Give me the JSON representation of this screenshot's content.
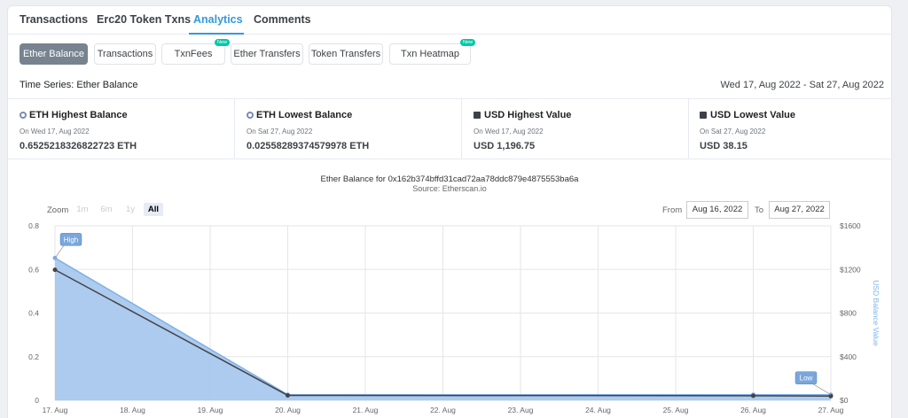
{
  "tabs": [
    {
      "label": "Transactions"
    },
    {
      "label": "Erc20 Token Txns"
    },
    {
      "label": "Analytics"
    },
    {
      "label": "Comments"
    }
  ],
  "subtabs": [
    {
      "label": "Ether Balance"
    },
    {
      "label": "Transactions"
    },
    {
      "label": "TxnFees",
      "badge": "New"
    },
    {
      "label": "Ether Transfers"
    },
    {
      "label": "Token Transfers"
    },
    {
      "label": "Txn Heatmap",
      "badge": "New"
    }
  ],
  "timeseries": {
    "title": "Time Series: Ether Balance",
    "range": "Wed 17, Aug 2022 - Sat 27, Aug 2022"
  },
  "stats": [
    {
      "icon": "eth-icon",
      "title": "ETH Highest Balance",
      "date": "On Wed 17, Aug 2022",
      "value": "0.6525218326822723 ETH"
    },
    {
      "icon": "eth-icon",
      "title": "ETH Lowest Balance",
      "date": "On Sat 27, Aug 2022",
      "value": "0.02558289374579978 ETH"
    },
    {
      "icon": "usd-icon",
      "title": "USD Highest Value",
      "date": "On Wed 17, Aug 2022",
      "value": "USD 1,196.75"
    },
    {
      "icon": "usd-icon",
      "title": "USD Lowest Value",
      "date": "On Sat 27, Aug 2022",
      "value": "USD 38.15"
    }
  ],
  "chart_controls": {
    "zoom_label": "Zoom",
    "zoom_options": [
      "1m",
      "6m",
      "1y",
      "All"
    ],
    "from_label": "From",
    "from_value": "Aug 16, 2022",
    "to_label": "To",
    "to_value": "Aug 27, 2022"
  },
  "colors": {
    "accent": "#3498db",
    "area_fill": "#a8c8ee",
    "area_line": "#7fb0e6",
    "usd_line": "#434348",
    "flag": "#7aa6da"
  },
  "chart_data": {
    "type": "area",
    "title": "Ether Balance for 0x162b374bffd31cad72aa78ddc879e4875553ba6a",
    "subtitle": "Source: Etherscan.io",
    "x": [
      "17. Aug",
      "18. Aug",
      "19. Aug",
      "20. Aug",
      "21. Aug",
      "22. Aug",
      "23. Aug",
      "24. Aug",
      "25. Aug",
      "26. Aug",
      "27. Aug"
    ],
    "ylim": [
      0,
      0.8
    ],
    "yticks": [
      "0",
      "0.2",
      "0.4",
      "0.6",
      "0.8"
    ],
    "y2label": "USD Balance Value",
    "y2lim": [
      0,
      1600
    ],
    "y2ticks": [
      "$0",
      "$400",
      "$800",
      "$1200",
      "$1600"
    ],
    "grid": true,
    "series": [
      {
        "axis": "left",
        "type": "area",
        "points": [
          [
            0,
            0.6525
          ],
          [
            3,
            0.0256
          ],
          [
            9,
            0.0256
          ],
          [
            10,
            0.0256
          ]
        ]
      },
      {
        "axis": "right",
        "type": "line",
        "points": [
          [
            0,
            1196.75
          ],
          [
            3,
            45
          ],
          [
            9,
            42
          ],
          [
            10,
            38.15
          ]
        ]
      }
    ],
    "annotations": [
      {
        "label": "High",
        "x": 0,
        "y": 0.6525
      },
      {
        "label": "Low",
        "x": 10,
        "y": 0.0256
      }
    ]
  }
}
